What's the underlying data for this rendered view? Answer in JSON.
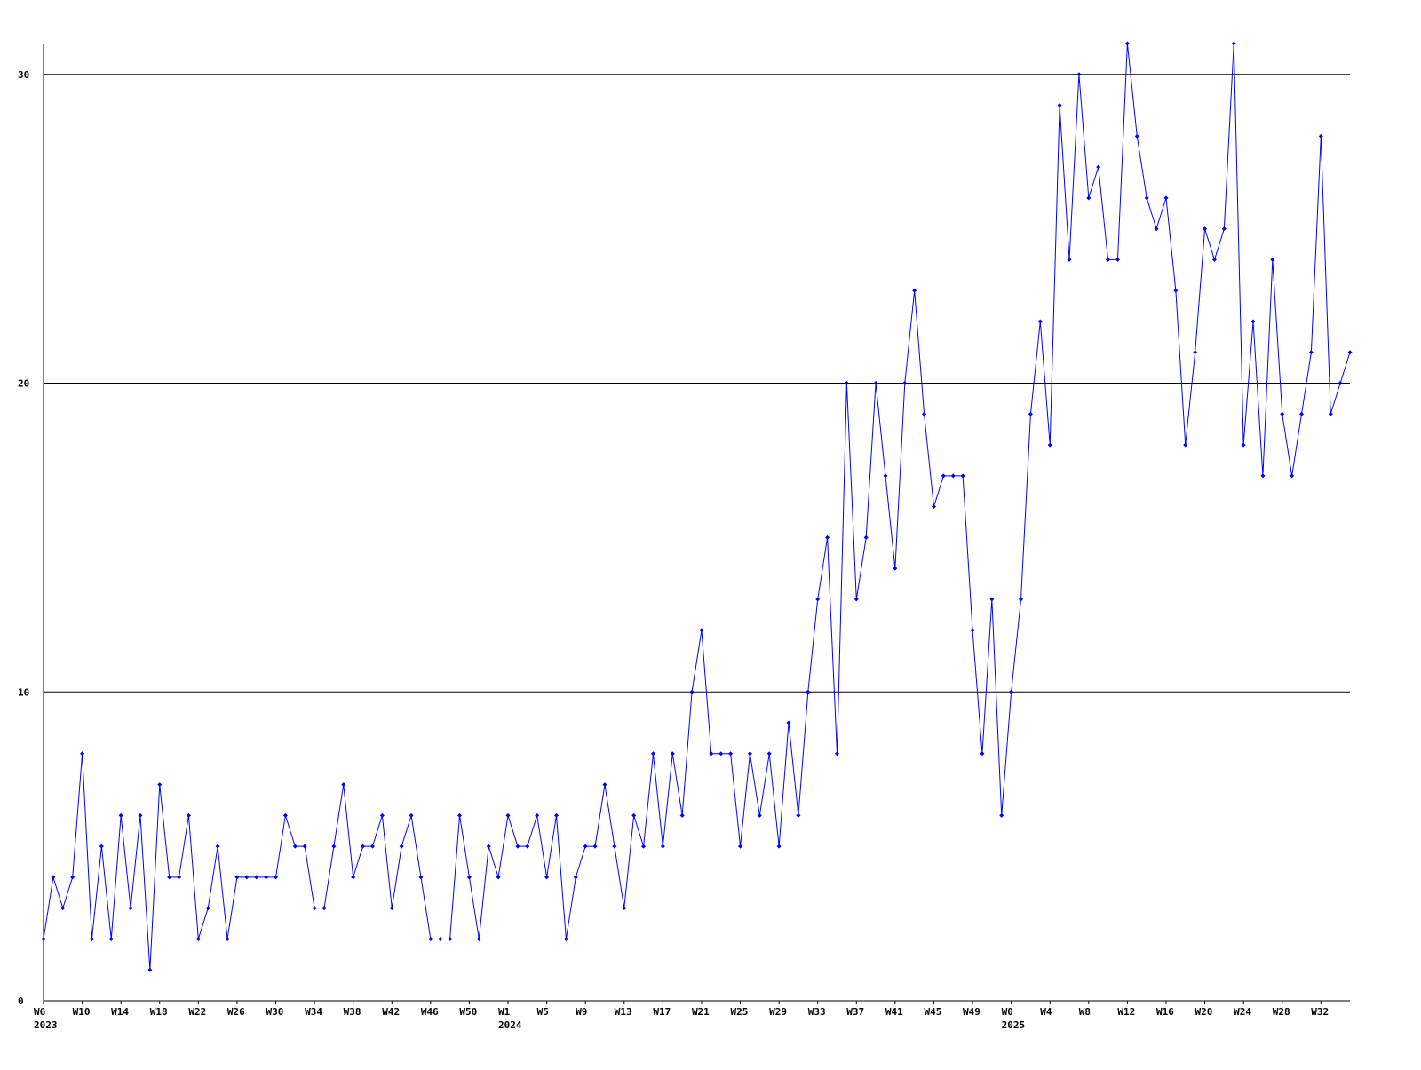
{
  "chart_data": {
    "type": "line",
    "categories": [
      "W6",
      null,
      null,
      null,
      "W10",
      null,
      null,
      null,
      "W14",
      null,
      null,
      null,
      "W18",
      null,
      null,
      null,
      "W22",
      null,
      null,
      null,
      "W26",
      null,
      null,
      null,
      "W30",
      null,
      null,
      null,
      "W34",
      null,
      null,
      null,
      "W38",
      null,
      null,
      null,
      "W42",
      null,
      null,
      null,
      "W46",
      null,
      null,
      null,
      "W50",
      null,
      null,
      null,
      "W1",
      null,
      null,
      null,
      "W5",
      null,
      null,
      null,
      "W9",
      null,
      null,
      null,
      "W13",
      null,
      null,
      null,
      "W17",
      null,
      null,
      null,
      "W21",
      null,
      null,
      null,
      "W25",
      null,
      null,
      null,
      "W29",
      null,
      null,
      null,
      "W33",
      null,
      null,
      null,
      "W37",
      null,
      null,
      null,
      "W41",
      null,
      null,
      null,
      "W45",
      null,
      null,
      null,
      "W49",
      null,
      null,
      null,
      "W0",
      null,
      null,
      null,
      "W4",
      null,
      null,
      null,
      "W8",
      null,
      null,
      null,
      "W12",
      null,
      null,
      null,
      "W16",
      null,
      null,
      null,
      "W20",
      null,
      null,
      null,
      "W24",
      null,
      null,
      null,
      "W28",
      null,
      null,
      null,
      "W32",
      null,
      null,
      null
    ],
    "category_years": [
      "2023",
      null,
      null,
      null,
      null,
      null,
      null,
      null,
      null,
      null,
      null,
      null,
      null,
      null,
      null,
      null,
      null,
      null,
      null,
      null,
      null,
      null,
      null,
      null,
      null,
      null,
      null,
      null,
      null,
      null,
      null,
      null,
      null,
      null,
      null,
      null,
      null,
      null,
      null,
      null,
      null,
      null,
      null,
      null,
      null,
      null,
      null,
      null,
      "2024",
      null,
      null,
      null,
      null,
      null,
      null,
      null,
      null,
      null,
      null,
      null,
      null,
      null,
      null,
      null,
      null,
      null,
      null,
      null,
      null,
      null,
      null,
      null,
      null,
      null,
      null,
      null,
      null,
      null,
      null,
      null,
      null,
      null,
      null,
      null,
      null,
      null,
      null,
      null,
      null,
      null,
      null,
      null,
      null,
      null,
      null,
      null,
      null,
      null,
      null,
      null,
      "2025",
      null,
      null,
      null,
      null,
      null,
      null,
      null,
      null,
      null,
      null,
      null,
      null,
      null,
      null,
      null,
      null,
      null,
      null,
      null,
      null,
      null,
      null,
      null,
      null,
      null,
      null,
      null,
      null,
      null,
      null,
      null,
      null,
      null,
      null,
      null
    ],
    "series": [
      {
        "color": "#0000ff",
        "values": [
          2,
          4,
          3,
          4,
          8,
          2,
          5,
          2,
          6,
          3,
          6,
          1,
          7,
          4,
          4,
          6,
          2,
          3,
          5,
          2,
          4,
          4,
          4,
          4,
          4,
          6,
          5,
          5,
          3,
          3,
          5,
          7,
          4,
          5,
          5,
          6,
          3,
          5,
          6,
          4,
          2,
          2,
          2,
          6,
          4,
          2,
          5,
          4,
          6,
          5,
          5,
          6,
          4,
          6,
          2,
          4,
          5,
          5,
          7,
          5,
          3,
          6,
          5,
          8,
          5,
          8,
          6,
          10,
          12,
          8,
          8,
          8,
          5,
          8,
          6,
          8,
          5,
          9,
          6,
          10,
          13,
          15,
          8,
          20,
          13,
          15,
          20,
          17,
          14,
          20,
          23,
          19,
          16,
          17,
          17,
          17,
          12,
          8,
          13,
          6,
          10,
          13,
          19,
          22,
          18,
          29,
          24,
          30,
          26,
          27,
          24,
          24,
          31,
          28,
          26,
          25,
          26,
          23,
          18,
          21,
          25,
          24,
          25,
          31,
          18,
          22,
          17,
          24,
          19,
          17,
          19,
          21,
          28,
          19,
          20,
          21
        ]
      }
    ],
    "ylim": [
      0,
      31
    ],
    "yticks": [
      0,
      10,
      20,
      30
    ],
    "grid": true
  }
}
